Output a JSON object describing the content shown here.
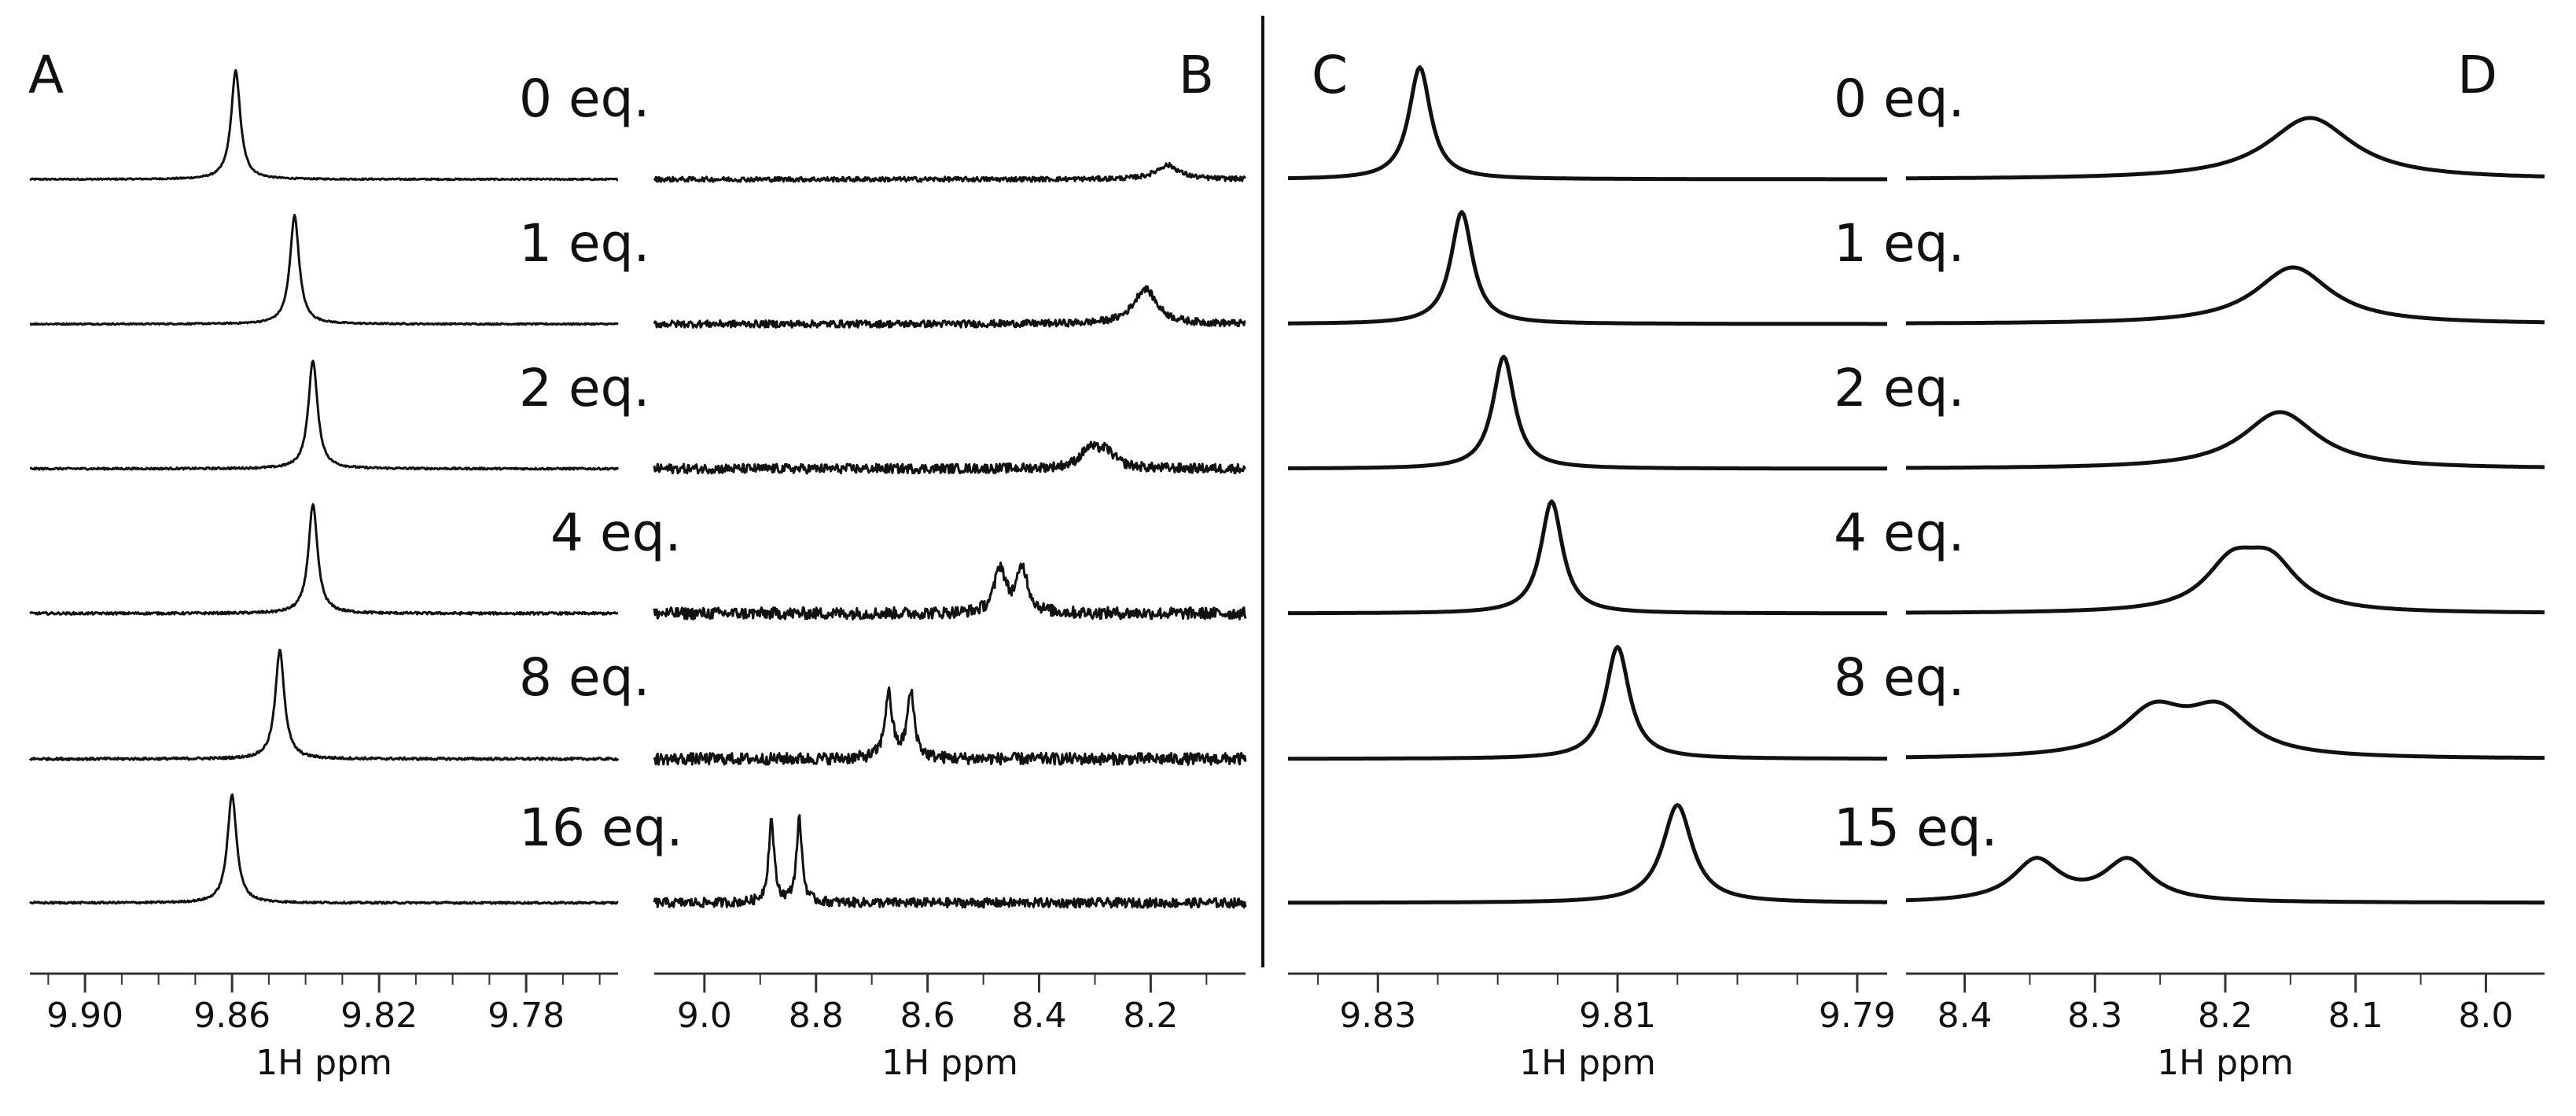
{
  "chart_data": [
    {
      "type": "line",
      "panel": "A",
      "title": "A",
      "xlabel": "1H ppm",
      "xlim": [
        9.915,
        9.755
      ],
      "ticks": [
        9.9,
        9.86,
        9.82,
        9.78
      ],
      "tick_labels": [
        "9.90",
        "9.86",
        "9.82",
        "9.78"
      ],
      "minor_step": 0.01,
      "decimals": 2,
      "series": [
        {
          "name": "0 eq.",
          "peaks": [
            [
              9.859,
              0.0015,
              0.92
            ]
          ],
          "noise": 0.006
        },
        {
          "name": "1 eq.",
          "peaks": [
            [
              9.843,
              0.0015,
              0.92
            ]
          ],
          "noise": 0.006
        },
        {
          "name": "2 eq.",
          "peaks": [
            [
              9.838,
              0.0015,
              0.92
            ]
          ],
          "noise": 0.008
        },
        {
          "name": "4 eq.",
          "peaks": [
            [
              9.838,
              0.0015,
              0.92
            ]
          ],
          "noise": 0.01
        },
        {
          "name": "8 eq.",
          "peaks": [
            [
              9.847,
              0.0015,
              0.92
            ]
          ],
          "noise": 0.01
        },
        {
          "name": "16 eq.",
          "peaks": [
            [
              9.86,
              0.0015,
              0.92
            ]
          ],
          "noise": 0.008
        }
      ]
    },
    {
      "type": "line",
      "panel": "B",
      "title": "B",
      "xlabel": "1H ppm",
      "xlim": [
        9.09,
        8.03
      ],
      "ticks": [
        9.0,
        8.8,
        8.6,
        8.4,
        8.2
      ],
      "tick_labels": [
        "9.0",
        "8.8",
        "8.6",
        "8.4",
        "8.2"
      ],
      "minor_step": 0.1,
      "decimals": 1,
      "series": [
        {
          "name": "0 eq.",
          "peaks": [
            [
              8.17,
              0.025,
              0.12
            ]
          ],
          "noise": 0.02
        },
        {
          "name": "1 eq.",
          "peaks": [
            [
              8.21,
              0.025,
              0.3
            ]
          ],
          "noise": 0.03
        },
        {
          "name": "2 eq.",
          "peaks": [
            [
              8.31,
              0.02,
              0.15
            ],
            [
              8.28,
              0.02,
              0.13
            ]
          ],
          "noise": 0.04
        },
        {
          "name": "4 eq.",
          "peaks": [
            [
              8.47,
              0.012,
              0.38
            ],
            [
              8.43,
              0.012,
              0.38
            ]
          ],
          "noise": 0.05
        },
        {
          "name": "8 eq.",
          "peaks": [
            [
              8.67,
              0.008,
              0.55
            ],
            [
              8.63,
              0.008,
              0.55
            ]
          ],
          "noise": 0.05
        },
        {
          "name": "16 eq.",
          "peaks": [
            [
              8.88,
              0.006,
              0.7
            ],
            [
              8.83,
              0.006,
              0.7
            ]
          ],
          "noise": 0.04
        }
      ]
    },
    {
      "type": "line",
      "panel": "C",
      "title": "C",
      "xlabel": "1H ppm",
      "xlim": [
        9.8375,
        9.7875
      ],
      "ticks": [
        9.83,
        9.81,
        9.79
      ],
      "tick_labels": [
        "9.83",
        "9.81",
        "9.79"
      ],
      "minor_step": 0.005,
      "decimals": 3,
      "series": [
        {
          "name": "0 eq.",
          "peaks": [
            [
              9.8265,
              0.0011,
              0.95
            ]
          ],
          "noise": 0.0
        },
        {
          "name": "1 eq.",
          "peaks": [
            [
              9.823,
              0.0011,
              0.95
            ]
          ],
          "noise": 0.0
        },
        {
          "name": "2 eq.",
          "peaks": [
            [
              9.8195,
              0.0011,
              0.95
            ]
          ],
          "noise": 0.0
        },
        {
          "name": "4 eq.",
          "peaks": [
            [
              9.8155,
              0.0011,
              0.95
            ]
          ],
          "noise": 0.0
        },
        {
          "name": "8 eq.",
          "peaks": [
            [
              9.81,
              0.0012,
              0.95
            ]
          ],
          "noise": 0.0
        },
        {
          "name": "15 eq.",
          "peaks": [
            [
              9.805,
              0.0015,
              0.83
            ]
          ],
          "noise": 0.0
        }
      ]
    },
    {
      "type": "line",
      "panel": "D",
      "title": "D",
      "xlabel": "1H ppm",
      "xlim": [
        8.445,
        7.955
      ],
      "ticks": [
        8.4,
        8.3,
        8.2,
        8.1,
        8.0
      ],
      "tick_labels": [
        "8.4",
        "8.3",
        "8.2",
        "8.1",
        "8.0"
      ],
      "minor_step": 0.05,
      "decimals": 2,
      "series": [
        {
          "name": "0 eq.",
          "peaks": [
            [
              8.135,
              0.04,
              0.52
            ]
          ],
          "noise": 0.0
        },
        {
          "name": "1 eq.",
          "peaks": [
            [
              8.148,
              0.035,
              0.48
            ]
          ],
          "noise": 0.0
        },
        {
          "name": "2 eq.",
          "peaks": [
            [
              8.158,
              0.035,
              0.48
            ]
          ],
          "noise": 0.0
        },
        {
          "name": "4 eq.",
          "peaks": [
            [
              8.195,
              0.025,
              0.38
            ],
            [
              8.165,
              0.025,
              0.38
            ]
          ],
          "noise": 0.0
        },
        {
          "name": "8 eq.",
          "peaks": [
            [
              8.255,
              0.03,
              0.38
            ],
            [
              8.205,
              0.03,
              0.38
            ]
          ],
          "noise": 0.0
        },
        {
          "name": "15 eq.",
          "peaks": [
            [
              8.345,
              0.022,
              0.35
            ],
            [
              8.275,
              0.022,
              0.35
            ]
          ],
          "noise": 0.0
        }
      ]
    }
  ],
  "eq_labels": [
    "0 eq.",
    "1 eq.",
    "2 eq.",
    "4 eq.",
    "8 eq.",
    "16 eq."
  ],
  "eq_labels_right": [
    "0 eq.",
    "1 eq.",
    "2 eq.",
    "4 eq.",
    "8 eq.",
    "15 eq."
  ],
  "colors": {
    "trace": "#111111",
    "axis": "#333333",
    "background": "#ffffff"
  }
}
